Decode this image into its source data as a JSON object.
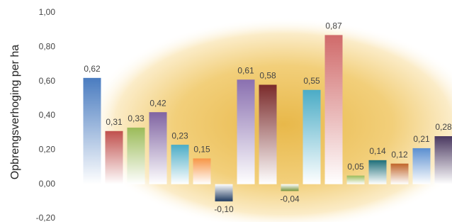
{
  "chart_data": {
    "type": "bar",
    "y_label": "Opbrengsverhoging per ha",
    "categories": [
      null,
      null,
      null,
      null,
      null,
      null,
      null,
      null,
      null,
      null,
      null,
      null,
      null,
      null,
      null,
      null,
      null
    ],
    "values": [
      0.62,
      0.31,
      0.33,
      0.42,
      0.23,
      0.15,
      -0.1,
      0.61,
      0.58,
      -0.04,
      0.55,
      0.87,
      0.05,
      0.14,
      0.12,
      0.21,
      0.28
    ],
    "value_labels": [
      "0,62",
      "0,31",
      "0,33",
      "0,42",
      "0,23",
      "0,15",
      "-0,10",
      "0,61",
      "0,58",
      "-0,04",
      "0,55",
      "0,87",
      "0,05",
      "0,14",
      "0,12",
      "0,21",
      "0,28"
    ],
    "colors": [
      "#4a7cc0",
      "#c0504d",
      "#9bbb59",
      "#8064a2",
      "#4bacc6",
      "#f79646",
      "#1f3a60",
      "#8a70b0",
      "#7a2a2a",
      "#77933c",
      "#4bacc6",
      "#d06a6a",
      "#9bbb59",
      "#1f6f7a",
      "#c0652a",
      "#5b8fd0",
      "#4a3860"
    ],
    "ylim": [
      -0.2,
      1.0
    ],
    "yticks": [
      {
        "value": -0.2,
        "label": "-0,20"
      },
      {
        "value": 0,
        "label": "0,00"
      },
      {
        "value": 0.2,
        "label": "0,20"
      },
      {
        "value": 0.4,
        "label": "0,40"
      },
      {
        "value": 0.6,
        "label": "0,60"
      },
      {
        "value": 0.8,
        "label": "0,80"
      },
      {
        "value": 1.0,
        "label": "1,00"
      }
    ]
  }
}
